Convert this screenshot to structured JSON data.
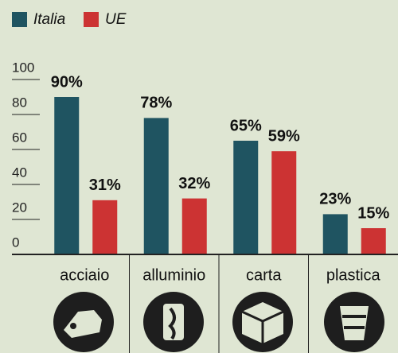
{
  "chart_data": {
    "type": "bar",
    "categories": [
      "acciaio",
      "alluminio",
      "carta",
      "plastica"
    ],
    "series": [
      {
        "name": "Italia",
        "color": "#1f5461",
        "values": [
          90,
          78,
          65,
          23
        ],
        "value_labels": [
          "90%",
          "78%",
          "65%",
          "23%"
        ]
      },
      {
        "name": "UE",
        "color": "#cc3333",
        "values": [
          31,
          32,
          59,
          15
        ],
        "value_labels": [
          "31%",
          "32%",
          "59%",
          "15%"
        ]
      }
    ],
    "ylim": [
      0,
      100
    ],
    "yticks": [
      0,
      20,
      40,
      60,
      80,
      100
    ],
    "legend": "top-left"
  }
}
